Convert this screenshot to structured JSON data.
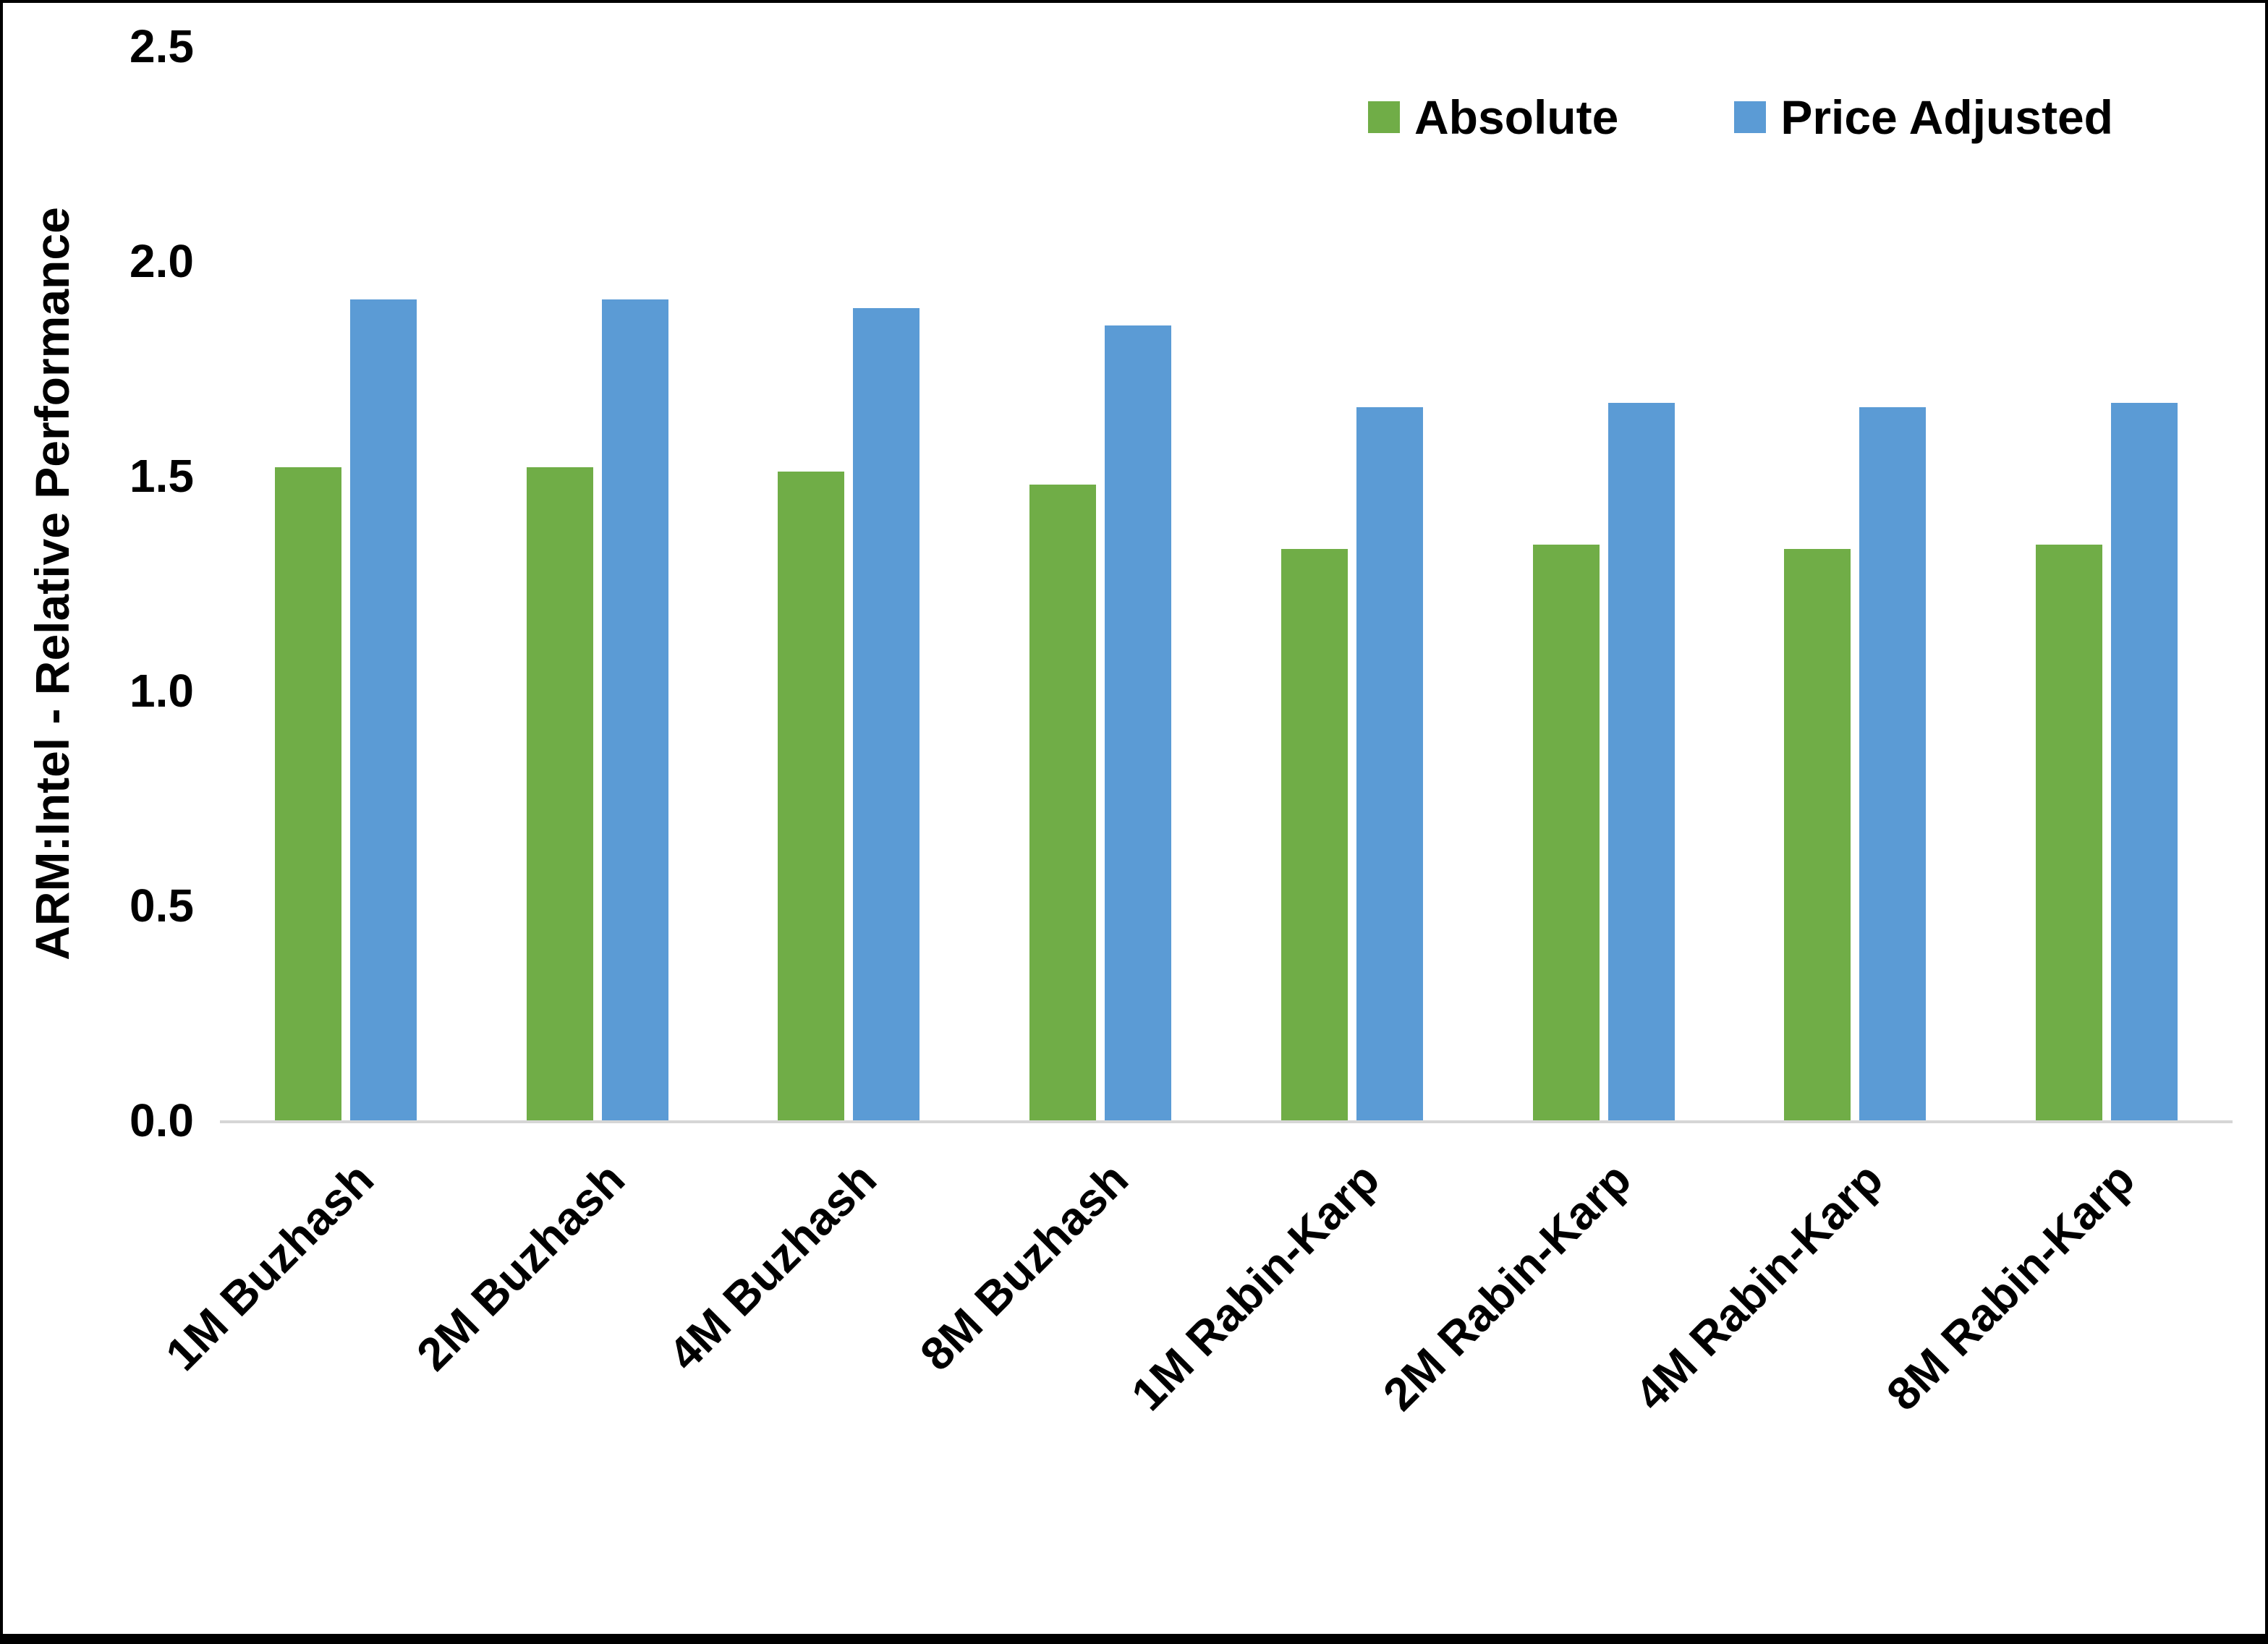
{
  "chart_data": {
    "type": "bar",
    "title": "",
    "xlabel": "",
    "ylabel": "ARM:Intel - Relative Performance",
    "ylim": [
      0,
      2.5
    ],
    "yticks": [
      "0.0",
      "0.5",
      "1.0",
      "1.5",
      "2.0",
      "2.5"
    ],
    "grid": false,
    "legend_position": "top-right",
    "categories": [
      "1M Buzhash",
      "2M Buzhash",
      "4M Buzhash",
      "8M Buzhash",
      "1M Rabin-Karp",
      "2M Rabin-Karp",
      "4M Rabin-Karp",
      "8M Rabin-Karp"
    ],
    "series": [
      {
        "name": "Absolute",
        "color": "#70AD47",
        "values": [
          1.52,
          1.52,
          1.51,
          1.48,
          1.33,
          1.34,
          1.33,
          1.34
        ]
      },
      {
        "name": "Price Adjusted",
        "color": "#5B9BD5",
        "values": [
          1.91,
          1.91,
          1.89,
          1.85,
          1.66,
          1.67,
          1.66,
          1.67
        ]
      }
    ]
  }
}
